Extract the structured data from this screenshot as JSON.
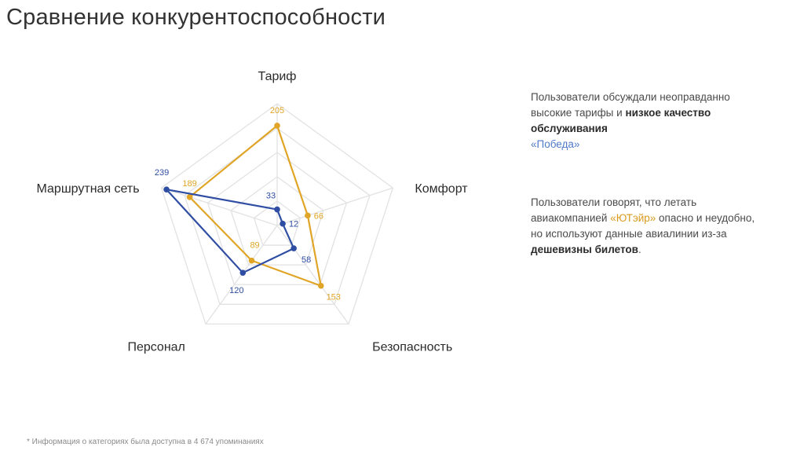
{
  "title": "Сравнение конкурентоспособности",
  "chart_data": {
    "type": "radar",
    "axes": [
      "Тариф",
      "Комфорт",
      "Безопасность",
      "Персонал",
      "Маршрутная сеть"
    ],
    "rmax": 250,
    "series": [
      {
        "color": "#e0a526",
        "values": [
          205,
          66,
          153,
          89,
          189
        ]
      },
      {
        "color": "#2f4ea3",
        "values": [
          33,
          12,
          58,
          120,
          239
        ]
      }
    ]
  },
  "notes": {
    "note1": {
      "part1": "Пользователи обсуждали неоправданно высокие тарифы и ",
      "bold": "низкое качество обслуживания",
      "brand": "«Победа»"
    },
    "note2": {
      "part1": "Пользователи говорят, что летать авиакомпанией ",
      "brand": "«ЮТэйр»",
      "part2": " опасно и неудобно, но используют данные авиалинии из-за ",
      "bold": "дешевизны билетов",
      "part3": "."
    }
  },
  "footnote": "* Информация о категориях была доступна в 4 674 упоминаниях"
}
